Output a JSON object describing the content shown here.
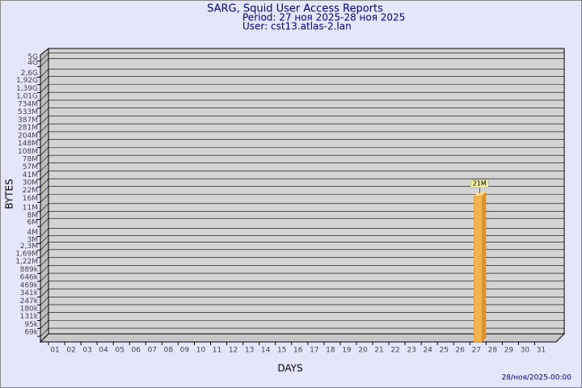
{
  "chart_data": {
    "type": "bar",
    "title": "SARG, Squid User Access Reports",
    "subtitle": "Period: 27 ноя 2025-28 ноя 2025",
    "user": "User: cst13.atlas-2.lan",
    "x_label": "DAYS",
    "y_label": "BYTES",
    "footer": "28/ноя/2025-00:00",
    "categories": [
      "01",
      "02",
      "03",
      "04",
      "05",
      "06",
      "07",
      "08",
      "09",
      "10",
      "11",
      "12",
      "13",
      "14",
      "15",
      "16",
      "17",
      "18",
      "19",
      "20",
      "21",
      "22",
      "23",
      "24",
      "25",
      "26",
      "27",
      "28",
      "29",
      "30",
      "31"
    ],
    "values": [
      null,
      null,
      null,
      null,
      null,
      null,
      null,
      null,
      null,
      null,
      null,
      null,
      null,
      null,
      null,
      null,
      null,
      null,
      null,
      null,
      null,
      null,
      null,
      null,
      null,
      null,
      21000000,
      null,
      null,
      null,
      null
    ],
    "value_labels": [
      null,
      null,
      null,
      null,
      null,
      null,
      null,
      null,
      null,
      null,
      null,
      null,
      null,
      null,
      null,
      null,
      null,
      null,
      null,
      null,
      null,
      null,
      null,
      null,
      null,
      null,
      "21M",
      null,
      null,
      null,
      null
    ],
    "color": "#f4b350",
    "log_scale": true,
    "grid": true,
    "ylim": [
      55000,
      6000000000
    ],
    "yticks": [
      {
        "value": 69000,
        "label": "69k"
      },
      {
        "value": 95000,
        "label": "95k"
      },
      {
        "value": 131000,
        "label": "131k"
      },
      {
        "value": 180000,
        "label": "180k"
      },
      {
        "value": 247000,
        "label": "247k"
      },
      {
        "value": 341000,
        "label": "341k"
      },
      {
        "value": 469000,
        "label": "469k"
      },
      {
        "value": 646000,
        "label": "646k"
      },
      {
        "value": 889000,
        "label": "889k"
      },
      {
        "value": 1220000,
        "label": "1,22M"
      },
      {
        "value": 1690000,
        "label": "1,69M"
      },
      {
        "value": 2300000,
        "label": "2,3M"
      },
      {
        "value": 3000000,
        "label": "3M"
      },
      {
        "value": 4000000,
        "label": "4M"
      },
      {
        "value": 6000000,
        "label": "6M"
      },
      {
        "value": 8000000,
        "label": "8M"
      },
      {
        "value": 11000000,
        "label": "11M"
      },
      {
        "value": 16000000,
        "label": "16M"
      },
      {
        "value": 22000000,
        "label": "22M"
      },
      {
        "value": 30000000,
        "label": "30M"
      },
      {
        "value": 41000000,
        "label": "41M"
      },
      {
        "value": 57000000,
        "label": "57M"
      },
      {
        "value": 78000000,
        "label": "78M"
      },
      {
        "value": 108000000,
        "label": "108M"
      },
      {
        "value": 148000000,
        "label": "148M"
      },
      {
        "value": 204000000,
        "label": "204M"
      },
      {
        "value": 281000000,
        "label": "281M"
      },
      {
        "value": 387000000,
        "label": "387M"
      },
      {
        "value": 533000000,
        "label": "533M"
      },
      {
        "value": 734000000,
        "label": "734M"
      },
      {
        "value": 1010000000,
        "label": "1,01G"
      },
      {
        "value": 1390000000,
        "label": "1,39G"
      },
      {
        "value": 1920000000,
        "label": "1,92G"
      },
      {
        "value": 2600000000,
        "label": "2,6G"
      },
      {
        "value": 4000000000,
        "label": "4G"
      },
      {
        "value": 5000000000,
        "label": "5G"
      }
    ]
  }
}
